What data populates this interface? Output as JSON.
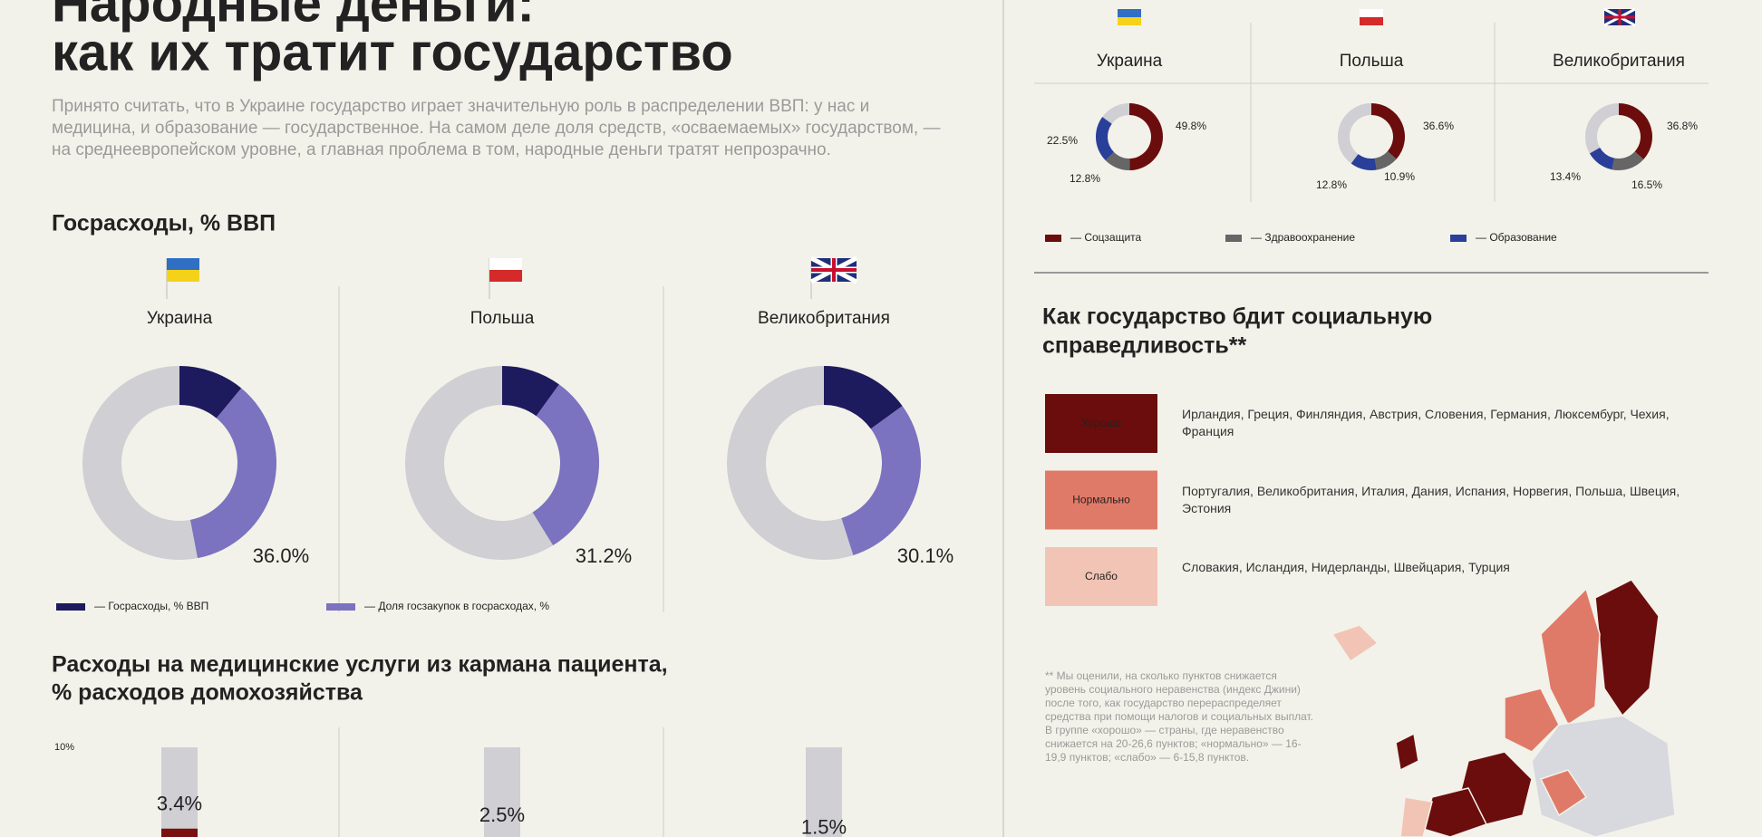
{
  "header": {
    "title_lines": [
      "Народные деньги:",
      "как их тратит государство"
    ],
    "intro": "Принято считать, что в Украине государство играет значительную роль в распределении ВВП: у нас и медицина, и образование — государственное. На самом деле доля средств, «осваемаемых» государством, — на среднеевропейском уровне, а главная проблема в том, народные деньги тратят непрозрачно."
  },
  "chart_data": [
    {
      "type": "donut",
      "title": "Госрасходы, % ВВП",
      "categories": [
        "Украина",
        "Польша",
        "Великобритания"
      ],
      "series": [
        {
          "name": "— Госрасходы, % ВВП",
          "color": "#1e1a5e",
          "values": [
            11,
            10,
            15
          ]
        },
        {
          "name": "— Доля госзакупок в госрасходах, %",
          "color": "#7b72c0",
          "values": [
            36.0,
            31.2,
            30.1
          ],
          "value_labels": [
            "36.0%",
            "31.2%",
            "30.1%"
          ]
        }
      ]
    },
    {
      "type": "bar",
      "title": "Расходы на медицинские услуги из кармана пациента, % расходов домохозяйства",
      "categories": [
        "Украина",
        "Польша",
        "Великобритания"
      ],
      "values": [
        3.4,
        2.5,
        1.5
      ],
      "value_labels": [
        "3.4%",
        "2.5%",
        "1.5%"
      ],
      "colors": [
        "#7a1010",
        "#e29a8c",
        "#f2c4b5"
      ],
      "ylim": [
        0,
        10
      ],
      "yticks": [
        {
          "value": 10,
          "label": "10%"
        }
      ]
    },
    {
      "type": "donut",
      "categories": [
        "Украина",
        "Польша",
        "Великобритания"
      ],
      "series": [
        {
          "name": "— Соцзащита",
          "color": "#6b0d0d",
          "values": [
            49.8,
            36.6,
            36.8
          ],
          "value_labels": [
            "49.8%",
            "36.6%",
            "36.8%"
          ]
        },
        {
          "name": "— Здравоохранение",
          "color": "#666666",
          "values": [
            12.8,
            10.9,
            16.5
          ],
          "value_labels": [
            "12.8%",
            "10.9%",
            "16.5%"
          ]
        },
        {
          "name": "— Образование",
          "color": "#2a3f9a",
          "values": [
            22.5,
            12.8,
            13.4
          ],
          "value_labels": [
            "22.5%",
            "12.8%",
            "13.4%"
          ]
        }
      ]
    }
  ],
  "social_justice": {
    "title_lines": [
      "Как государство бдит социальную",
      "справедливость**"
    ],
    "groups": [
      {
        "label": "Хорошо",
        "color": "#6b0d0d",
        "countries": "Ирландия, Греция, Финляндия, Австрия, Словения, Германия, Люксембург, Чехия, Франция"
      },
      {
        "label": "Нормально",
        "color": "#e07a68",
        "countries": "Португалия, Великобритания, Италия, Дания, Испания, Норвегия, Польша, Швеция, Эстония"
      },
      {
        "label": "Слабо",
        "color": "#f2c4b5",
        "countries": "Словакия, Исландия, Нидерланды, Швейцария, Турция"
      }
    ],
    "footnote": "** Мы оценили, на сколько пунктов снижается уровень социального неравенства (индекс Джини) после того, как государство перераспределяет средства при помощи налогов и социальных выплат. В группе «хорошо» — страны, где неравенство снижается на 20-26,6 пунктов; «нормально» — 16-19,9 пунктов; «слабо» — 6-15,8 пунктов."
  }
}
